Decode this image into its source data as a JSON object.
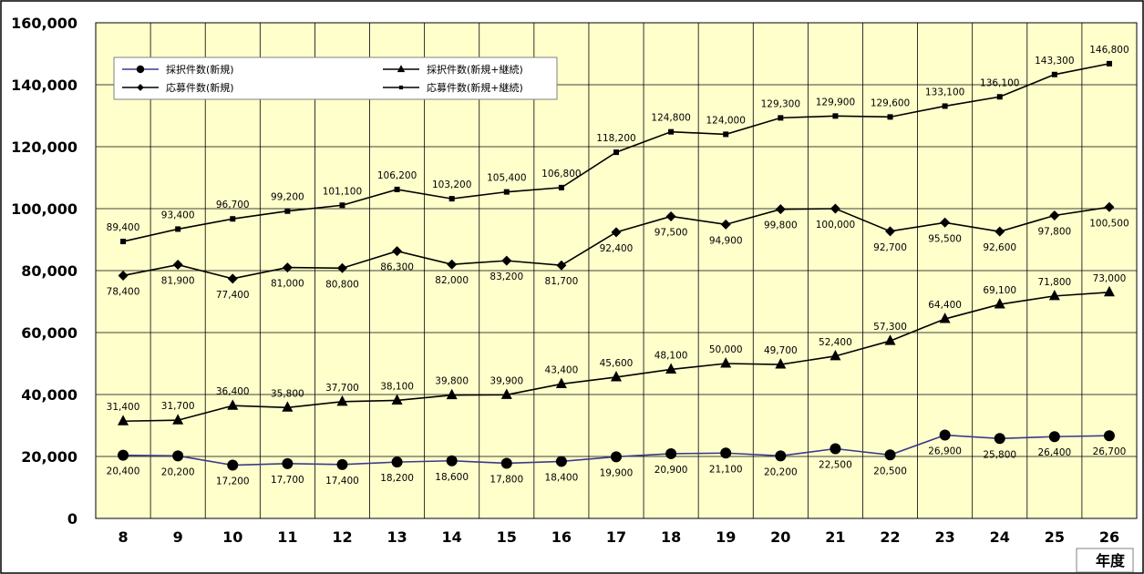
{
  "chart_data": {
    "type": "line",
    "categories": [
      "8",
      "9",
      "10",
      "11",
      "12",
      "13",
      "14",
      "15",
      "16",
      "17",
      "18",
      "19",
      "20",
      "21",
      "22",
      "23",
      "24",
      "25",
      "26"
    ],
    "x_unit_label": "年度",
    "ylim": [
      0,
      160000
    ],
    "y_ticks": [
      0,
      20000,
      40000,
      60000,
      80000,
      100000,
      120000,
      140000,
      160000
    ],
    "y_tick_labels": [
      "0",
      "20,000",
      "40,000",
      "60,000",
      "80,000",
      "100,000",
      "120,000",
      "140,000",
      "160,000"
    ],
    "grid": true,
    "legend_position": "top-left",
    "plot_background": "#ffffcc",
    "series": [
      {
        "name": "採択件数(新規)",
        "marker": "circle",
        "color": "#3a3a8c",
        "marker_color": "#000000",
        "values": [
          20400,
          20200,
          17200,
          17700,
          17400,
          18200,
          18600,
          17800,
          18400,
          19900,
          20900,
          21100,
          20200,
          22500,
          20500,
          26900,
          25800,
          26400,
          26700
        ],
        "labels": [
          "20,400",
          "20,200",
          "17,200",
          "17,700",
          "17,400",
          "18,200",
          "18,600",
          "17,800",
          "18,400",
          "19,900",
          "20,900",
          "21,100",
          "20,200",
          "22,500",
          "20,500",
          "26,900",
          "25,800",
          "26,400",
          "26,700"
        ],
        "label_position": "below"
      },
      {
        "name": "採択件数(新規+継続)",
        "marker": "triangle",
        "color": "#000000",
        "marker_color": "#000000",
        "values": [
          31400,
          31700,
          36400,
          35800,
          37700,
          38100,
          39800,
          39900,
          43400,
          45600,
          48100,
          50000,
          49700,
          52400,
          57300,
          64400,
          69100,
          71800,
          73000
        ],
        "labels": [
          "31,400",
          "31,700",
          "36,400",
          "35,800",
          "37,700",
          "38,100",
          "39,800",
          "39,900",
          "43,400",
          "45,600",
          "48,100",
          "50,000",
          "49,700",
          "52,400",
          "57,300",
          "64,400",
          "69,100",
          "71,800",
          "73,000"
        ],
        "label_position": "above"
      },
      {
        "name": "応募件数(新規)",
        "marker": "diamond",
        "color": "#000000",
        "marker_color": "#000000",
        "values": [
          78400,
          81900,
          77400,
          81000,
          80800,
          86300,
          82000,
          83200,
          81700,
          92400,
          97500,
          94900,
          99800,
          100000,
          92700,
          95500,
          92600,
          97800,
          100500
        ],
        "labels": [
          "78,400",
          "81,900",
          "77,400",
          "81,000",
          "80,800",
          "86,300",
          "82,000",
          "83,200",
          "81,700",
          "92,400",
          "97,500",
          "94,900",
          "99,800",
          "100,000",
          "92,700",
          "95,500",
          "92,600",
          "97,800",
          "100,500"
        ],
        "label_position": "below"
      },
      {
        "name": "応募件数(新規+継続)",
        "marker": "square",
        "color": "#000000",
        "marker_color": "#000000",
        "values": [
          89400,
          93400,
          96700,
          99200,
          101100,
          106200,
          103200,
          105400,
          106800,
          118200,
          124800,
          124000,
          129300,
          129900,
          129600,
          133100,
          136100,
          143300,
          146800
        ],
        "labels": [
          "89,400",
          "93,400",
          "96,700",
          "99,200",
          "101,100",
          "106,200",
          "103,200",
          "105,400",
          "106,800",
          "118,200",
          "124,800",
          "124,000",
          "129,300",
          "129,900",
          "129,600",
          "133,100",
          "136,100",
          "143,300",
          "146,800"
        ],
        "label_position": "above"
      }
    ]
  }
}
